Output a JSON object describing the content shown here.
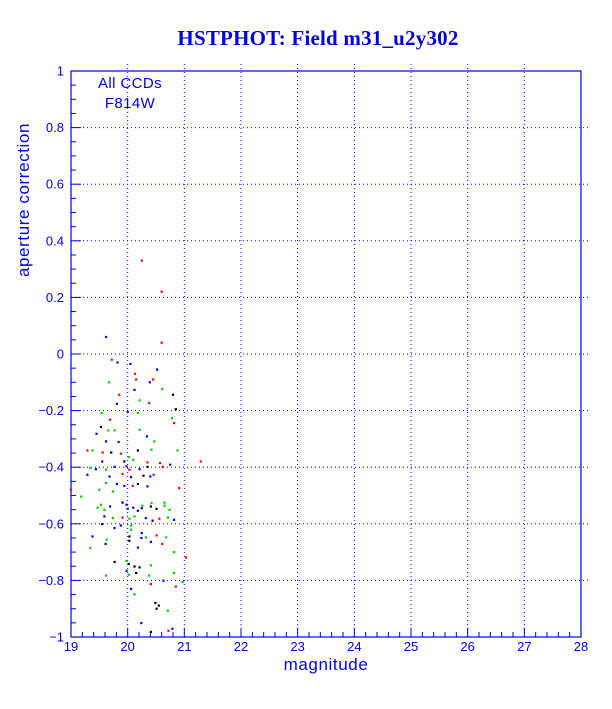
{
  "title": "HSTPHOT: Field m31_u2y302",
  "legend": {
    "line1": "All CCDs",
    "line2": "F814W"
  },
  "colors": {
    "title_blue": "#0000dd",
    "axis_blue": "#0000ee",
    "grid_blue": "#0000ee",
    "point_black": "#000000",
    "point_red": "#ff0000",
    "point_green": "#00cc00",
    "point_blue": "#0000ff"
  },
  "chart_data": {
    "type": "scatter",
    "title": "HSTPHOT: Field m31_u2y302",
    "xlabel": "magnitude",
    "ylabel": "aperture correction",
    "xlim": [
      19,
      28
    ],
    "ylim": [
      -1,
      1
    ],
    "x_major_ticks": [
      19,
      20,
      21,
      22,
      23,
      24,
      25,
      26,
      27,
      28
    ],
    "x_tick_labels": [
      "19",
      "20",
      "21",
      "22",
      "23",
      "24",
      "25",
      "26",
      "27",
      "28"
    ],
    "x_minor_step": 0.2,
    "y_major_ticks": [
      1,
      0.8,
      0.6,
      0.4,
      0.2,
      0,
      -0.2,
      -0.4,
      -0.6,
      -0.8,
      -1
    ],
    "y_tick_labels": [
      "1",
      "0.8",
      "0.6",
      "0.4",
      "0.2",
      "0",
      "−0.2",
      "−0.4",
      "−0.6",
      "−0.8",
      "−1"
    ],
    "y_minor_step": 0.05,
    "grid": "dotted blue lines at every major tick (x: 20-27, y: -0.8 to 0.8)",
    "legend_position": "top-left inside plot",
    "annotations": [
      "All CCDs",
      "F814W"
    ],
    "marker": "small filled square",
    "series": [
      {
        "name": "ccd-black",
        "color": "#000000",
        "points": [
          [
            20.8,
            -0.144
          ],
          [
            20.85,
            -0.195
          ],
          [
            19.53,
            -0.258
          ],
          [
            19.71,
            -0.348
          ],
          [
            20.18,
            -0.341
          ],
          [
            19.94,
            -0.38
          ],
          [
            20.35,
            -0.399
          ],
          [
            20.28,
            -0.43
          ],
          [
            20.18,
            -0.459
          ],
          [
            19.91,
            -0.525
          ],
          [
            20.41,
            -0.539
          ],
          [
            20.51,
            -0.547
          ],
          [
            20.44,
            -0.589
          ],
          [
            20.03,
            -0.645
          ],
          [
            20.03,
            -0.66
          ],
          [
            19.77,
            -0.735
          ],
          [
            20.02,
            -0.742
          ],
          [
            20.12,
            -0.751
          ],
          [
            20.21,
            -0.754
          ],
          [
            20.15,
            -0.774
          ],
          [
            20.49,
            -0.88
          ],
          [
            20.55,
            -0.889
          ],
          [
            20.51,
            -0.9
          ],
          [
            20.41,
            -0.982
          ]
        ]
      },
      {
        "name": "ccd-red",
        "color": "#ff0000",
        "points": [
          [
            20.25,
            0.33
          ],
          [
            20.6,
            0.22
          ],
          [
            20.6,
            0.04
          ],
          [
            19.72,
            -0.02
          ],
          [
            20.13,
            -0.07
          ],
          [
            20.15,
            -0.09
          ],
          [
            20.45,
            -0.09
          ],
          [
            19.85,
            -0.144
          ],
          [
            20.38,
            -0.174
          ],
          [
            19.69,
            -0.232
          ],
          [
            20.82,
            -0.244
          ],
          [
            19.29,
            -0.341
          ],
          [
            19.56,
            -0.348
          ],
          [
            19.88,
            -0.352
          ],
          [
            20.35,
            -0.383
          ],
          [
            20.57,
            -0.385
          ],
          [
            21.29,
            -0.38
          ],
          [
            20.03,
            -0.409
          ],
          [
            20.62,
            -0.399
          ],
          [
            19.91,
            -0.424
          ],
          [
            20.46,
            -0.427
          ],
          [
            20.09,
            -0.466
          ],
          [
            19.0,
            -0.48
          ],
          [
            20.91,
            -0.474
          ],
          [
            19.91,
            -0.578
          ],
          [
            20.56,
            -0.582
          ],
          [
            20.51,
            -0.641
          ],
          [
            20.61,
            -0.671
          ],
          [
            21.03,
            -0.719
          ],
          [
            20.41,
            -0.813
          ],
          [
            20.85,
            -0.822
          ],
          [
            20.72,
            -0.978
          ]
        ]
      },
      {
        "name": "ccd-green",
        "color": "#00cc00",
        "points": [
          [
            19.67,
            -0.1
          ],
          [
            20.61,
            -0.124
          ],
          [
            20.21,
            -0.164
          ],
          [
            19.54,
            -0.209
          ],
          [
            20.18,
            -0.208
          ],
          [
            20.78,
            -0.227
          ],
          [
            19.66,
            -0.27
          ],
          [
            19.77,
            -0.27
          ],
          [
            20.21,
            -0.268
          ],
          [
            20.47,
            -0.309
          ],
          [
            19.38,
            -0.341
          ],
          [
            20.42,
            -0.338
          ],
          [
            20.88,
            -0.341
          ],
          [
            20.02,
            -0.364
          ],
          [
            20.1,
            -0.374
          ],
          [
            19.34,
            -0.403
          ],
          [
            19.62,
            -0.409
          ],
          [
            19.62,
            -0.456
          ],
          [
            19.5,
            -0.48
          ],
          [
            19.74,
            -0.486
          ],
          [
            19.18,
            -0.504
          ],
          [
            19.53,
            -0.533
          ],
          [
            20.26,
            -0.536
          ],
          [
            20.42,
            -0.527
          ],
          [
            20.65,
            -0.525
          ],
          [
            19.47,
            -0.543
          ],
          [
            19.59,
            -0.551
          ],
          [
            20.65,
            -0.536
          ],
          [
            20.74,
            -0.551
          ],
          [
            19.74,
            -0.58
          ],
          [
            20.03,
            -0.582
          ],
          [
            20.12,
            -0.574
          ],
          [
            20.71,
            -0.578
          ],
          [
            20.06,
            -0.606
          ],
          [
            20.06,
            -0.621
          ],
          [
            19.63,
            -0.656
          ],
          [
            20.32,
            -0.648
          ],
          [
            20.68,
            -0.648
          ],
          [
            19.34,
            -0.686
          ],
          [
            20.82,
            -0.7
          ],
          [
            19.98,
            -0.731
          ],
          [
            20.41,
            -0.747
          ],
          [
            20.02,
            -0.78
          ],
          [
            19.62,
            -0.783
          ],
          [
            20.38,
            -0.783
          ],
          [
            20.82,
            -0.774
          ],
          [
            20.97,
            -0.806
          ],
          [
            20.12,
            -0.849
          ],
          [
            20.71,
            -0.907
          ]
        ]
      },
      {
        "name": "ccd-blue",
        "color": "#0000ff",
        "points": [
          [
            19.62,
            0.06
          ],
          [
            19.82,
            -0.03
          ],
          [
            20.05,
            -0.035
          ],
          [
            20.52,
            -0.055
          ],
          [
            20.39,
            -0.1
          ],
          [
            20.12,
            -0.127
          ],
          [
            19.81,
            -0.176
          ],
          [
            20.0,
            -0.205
          ],
          [
            19.45,
            -0.282
          ],
          [
            20.34,
            -0.291
          ],
          [
            19.62,
            -0.309
          ],
          [
            19.84,
            -0.311
          ],
          [
            19.55,
            -0.38
          ],
          [
            19.44,
            -0.407
          ],
          [
            19.77,
            -0.399
          ],
          [
            19.98,
            -0.397
          ],
          [
            20.21,
            -0.407
          ],
          [
            20.75,
            -0.391
          ],
          [
            19.29,
            -0.427
          ],
          [
            19.68,
            -0.433
          ],
          [
            20.06,
            -0.435
          ],
          [
            20.4,
            -0.433
          ],
          [
            19.81,
            -0.459
          ],
          [
            19.94,
            -0.466
          ],
          [
            20.35,
            -0.468
          ],
          [
            19.98,
            -0.533
          ],
          [
            19.69,
            -0.539
          ],
          [
            20.0,
            -0.547
          ],
          [
            20.1,
            -0.543
          ],
          [
            20.18,
            -0.554
          ],
          [
            20.25,
            -0.545
          ],
          [
            19.59,
            -0.574
          ],
          [
            20.32,
            -0.58
          ],
          [
            20.82,
            -0.586
          ],
          [
            19.55,
            -0.601
          ],
          [
            19.77,
            -0.615
          ],
          [
            19.88,
            -0.606
          ],
          [
            20.25,
            -0.633
          ],
          [
            19.38,
            -0.645
          ],
          [
            20.24,
            -0.65
          ],
          [
            20.41,
            -0.664
          ],
          [
            19.61,
            -0.671
          ],
          [
            20.18,
            -0.684
          ],
          [
            19.98,
            -0.766
          ],
          [
            20.63,
            -0.801
          ],
          [
            20.06,
            -0.83
          ],
          [
            20.24,
            -0.951
          ],
          [
            20.79,
            -0.971
          ]
        ]
      }
    ]
  }
}
